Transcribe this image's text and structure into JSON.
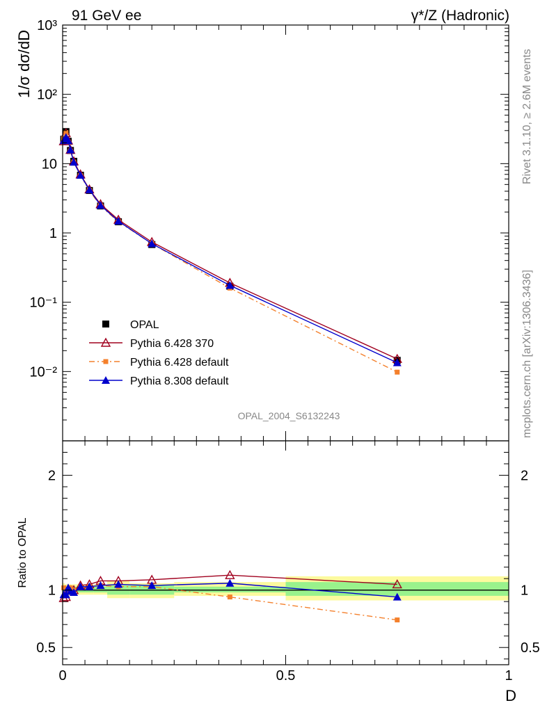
{
  "header": {
    "left": "91 GeV ee",
    "right": "γ*/Z (Hadronic)"
  },
  "side": {
    "rivet": "Rivet 3.1.10, ≥ 2.6M events",
    "mcplots": "mcplots.cern.ch [arXiv:1306.3436]"
  },
  "chart_data": [
    {
      "type": "line",
      "ylabel": "1/σ dσ/dD",
      "yscale": "log",
      "ylim": [
        0.001,
        1000
      ],
      "xlim": [
        0,
        1
      ],
      "analysis_label": "OPAL_2004_S6132243",
      "yticks": [
        "10³",
        "10²",
        "10",
        "1",
        "10⁻¹",
        "10⁻²"
      ],
      "x": [
        0.0025,
        0.0075,
        0.0125,
        0.0175,
        0.025,
        0.04,
        0.06,
        0.085,
        0.125,
        0.2,
        0.375,
        0.75
      ],
      "series": [
        {
          "name": "OPAL",
          "color": "#000000",
          "marker": "square",
          "values": [
            22.5,
            29.0,
            21.0,
            15.5,
            10.8,
            6.8,
            4.1,
            2.45,
            1.45,
            0.68,
            0.17,
            0.0145
          ]
        },
        {
          "name": "Pythia 6.428 370",
          "color": "#a0001e",
          "marker": "open-triangle",
          "line": "solid",
          "values": [
            21.0,
            27.5,
            21.5,
            15.8,
            10.8,
            7.0,
            4.25,
            2.6,
            1.55,
            0.74,
            0.19,
            0.0152
          ]
        },
        {
          "name": "Pythia 6.428 default",
          "color": "#f4802c",
          "marker": "square",
          "line": "dashdot",
          "values": [
            23.0,
            28.0,
            20.5,
            15.2,
            10.5,
            6.7,
            4.1,
            2.45,
            1.45,
            0.7,
            0.16,
            0.0098
          ]
        },
        {
          "name": "Pythia 8.308 default",
          "color": "#0000cc",
          "marker": "triangle",
          "line": "solid",
          "values": [
            21.5,
            24.0,
            21.5,
            15.8,
            10.5,
            6.8,
            4.2,
            2.5,
            1.48,
            0.7,
            0.175,
            0.0134
          ]
        }
      ]
    },
    {
      "type": "line",
      "ylabel": "Ratio to OPAL",
      "xlabel": "D",
      "ylim": [
        0.35,
        2.3
      ],
      "xlim": [
        0,
        1
      ],
      "yticks": [
        "0.5",
        "1",
        "2"
      ],
      "xticks": [
        "0",
        "0.5",
        "1"
      ],
      "x": [
        0.0025,
        0.0075,
        0.0125,
        0.0175,
        0.025,
        0.04,
        0.06,
        0.085,
        0.125,
        0.2,
        0.375,
        0.75
      ],
      "bands": {
        "edges": [
          0,
          0.005,
          0.01,
          0.015,
          0.02,
          0.03,
          0.05,
          0.07,
          0.1,
          0.15,
          0.25,
          0.5,
          1.0
        ],
        "outer": [
          [
            0.95,
            1.06
          ],
          [
            0.95,
            1.05
          ],
          [
            0.95,
            1.05
          ],
          [
            0.95,
            1.05
          ],
          [
            0.96,
            1.05
          ],
          [
            0.96,
            1.05
          ],
          [
            0.96,
            1.05
          ],
          [
            0.96,
            1.05
          ],
          [
            0.93,
            1.08
          ],
          [
            0.93,
            1.06
          ],
          [
            0.95,
            1.07
          ],
          [
            0.91,
            1.12
          ]
        ],
        "inner": [
          [
            0.97,
            1.03
          ],
          [
            0.97,
            1.03
          ],
          [
            0.97,
            1.03
          ],
          [
            0.97,
            1.03
          ],
          [
            0.98,
            1.03
          ],
          [
            0.98,
            1.03
          ],
          [
            0.98,
            1.03
          ],
          [
            0.98,
            1.03
          ],
          [
            0.96,
            1.04
          ],
          [
            0.96,
            1.04
          ],
          [
            0.98,
            1.03
          ],
          [
            0.95,
            1.07
          ]
        ],
        "inner_color": "#99f28c",
        "outer_color": "#fcfa9e"
      },
      "series": [
        {
          "name": "Pythia 6.428 370",
          "color": "#a0001e",
          "values": [
            0.93,
            0.94,
            1.01,
            1.0,
            1.0,
            1.04,
            1.05,
            1.08,
            1.08,
            1.09,
            1.13,
            1.05
          ]
        },
        {
          "name": "Pythia 6.428 default",
          "color": "#f4802c",
          "values": [
            1.02,
            0.97,
            0.99,
            1.02,
            1.0,
            1.02,
            1.03,
            1.04,
            1.03,
            1.03,
            0.94,
            0.74
          ]
        },
        {
          "name": "Pythia 8.308 default",
          "color": "#0000cc",
          "values": [
            0.96,
            0.96,
            1.02,
            0.99,
            0.98,
            1.03,
            1.03,
            1.04,
            1.05,
            1.04,
            1.06,
            0.94
          ]
        }
      ]
    }
  ]
}
